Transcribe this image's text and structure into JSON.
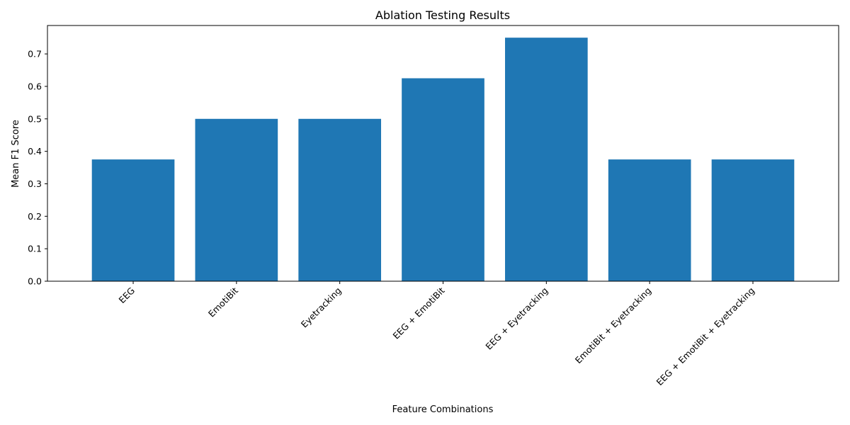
{
  "chart_data": {
    "type": "bar",
    "title": "Ablation Testing Results",
    "xlabel": "Feature Combinations",
    "ylabel": "Mean F1 Score",
    "categories": [
      "EEG",
      "EmotiBit",
      "Eyetracking",
      "EEG + EmotiBit",
      "EEG + Eyetracking",
      "EmotiBit + Eyetracking",
      "EEG + EmotiBit + Eyetracking"
    ],
    "values": [
      0.375,
      0.5,
      0.5,
      0.625,
      0.75,
      0.375,
      0.375
    ],
    "ylim": [
      0,
      0.7875
    ],
    "yticks": [
      "0.0",
      "0.1",
      "0.2",
      "0.3",
      "0.4",
      "0.5",
      "0.6",
      "0.7"
    ],
    "bar_color": "#1f77b4",
    "grid": false,
    "legend": false
  }
}
